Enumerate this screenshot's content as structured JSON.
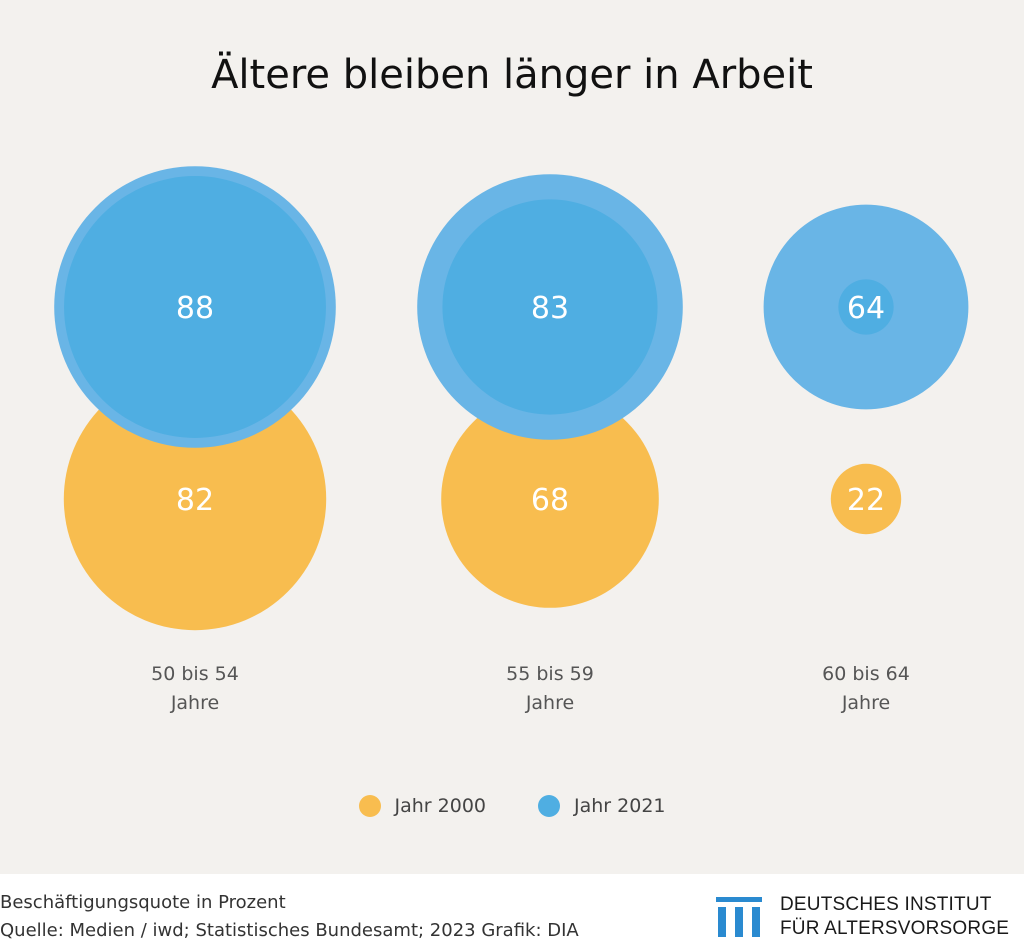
{
  "title": "Ältere bleiben länger in Arbeit",
  "legend": [
    {
      "label": "Jahr 2000",
      "color": "#f8bd4f"
    },
    {
      "label": "Jahr 2021",
      "color": "#4faee2"
    }
  ],
  "footer": {
    "note": "Beschäftigungsquote in Prozent",
    "source": "Quelle: Medien / iwd; Statistisches Bundesamt; 2023  Grafik: DIA",
    "logo_line1": "DEUTSCHES INSTITUT",
    "logo_line2": "FÜR ALTERSVORSORGE"
  },
  "chart_data": {
    "type": "bubble",
    "title": "Ältere bleiben länger in Arbeit",
    "categories": [
      [
        "50 bis 54",
        "Jahre"
      ],
      [
        "55 bis 59",
        "Jahre"
      ],
      [
        "60 bis 64",
        "Jahre"
      ]
    ],
    "series": [
      {
        "name": "Jahr 2000",
        "color": "#f8bd4f",
        "values": [
          82,
          68,
          22
        ]
      },
      {
        "name": "Jahr 2021",
        "color": "#4faee2",
        "values": [
          88,
          83,
          64
        ]
      }
    ],
    "ring_color": "#69b5e6"
  }
}
